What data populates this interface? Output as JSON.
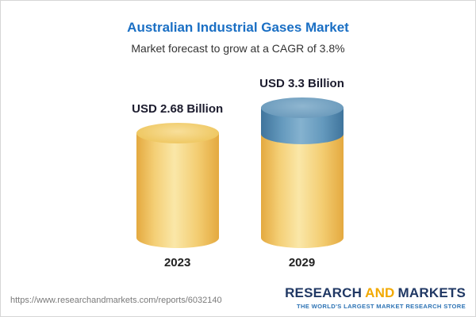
{
  "header": {
    "title": "Australian Industrial Gases Market",
    "subtitle": "Market forecast to grow at a CAGR of 3.8%"
  },
  "chart_data": {
    "type": "bar",
    "variant": "3d-cylinder",
    "title": "Australian Industrial Gases Market",
    "subtitle": "Market forecast to grow at a CAGR of 3.8%",
    "categories": [
      "2023",
      "2029"
    ],
    "values": [
      2.68,
      3.3
    ],
    "unit": "USD Billion",
    "value_labels": [
      "USD 2.68 Billion",
      "USD 3.3 Billion"
    ],
    "cagr_percent": 3.8,
    "legend": "none",
    "gridlines": false,
    "colors": {
      "cylinder_gold": "#f0c763",
      "growth_segment_blue": "#5b8fb5",
      "title_blue": "#1a6fc4"
    }
  },
  "footer": {
    "url": "https://www.researchandmarkets.com/reports/6032140",
    "logo": {
      "research": "RESEARCH",
      "and": "AND",
      "markets": "MARKETS",
      "tagline": "THE WORLD'S LARGEST MARKET RESEARCH STORE"
    }
  }
}
